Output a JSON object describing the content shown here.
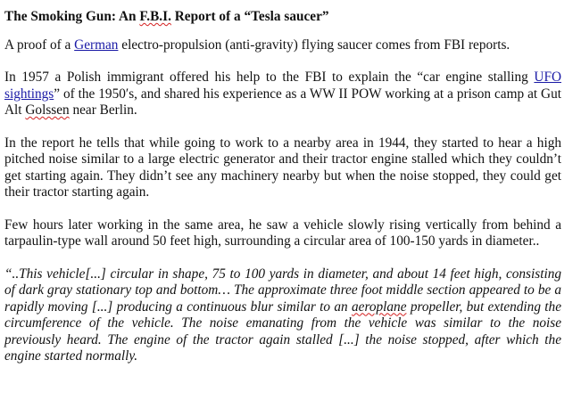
{
  "article": {
    "title": {
      "prefix": "The Smoking Gun: An ",
      "fbi": "F.B.I.",
      "suffix": " Report of a “Tesla saucer”"
    },
    "p1": {
      "before": "A proof of a ",
      "link_german": "German",
      "after": " electro-propulsion (anti-gravity) flying saucer comes from FBI reports."
    },
    "p2": {
      "before": "In 1957 a Polish immigrant offered his help to the FBI to explain the “car engine stalling ",
      "link_ufo": "UFO sightings",
      "middle": "” of the 1950′s, and shared his experience as a WW II POW working at a prison camp at Gut Alt ",
      "golssen": "Golssen",
      "after": " near Berlin."
    },
    "p3": "In the report he tells that while going to work to a nearby area in 1944, they started to hear a high pitched noise similar to a large electric generator and their tractor engine stalled which they couldn’t get starting again. They didn’t see any machinery nearby but when the noise stopped, they could get their tractor starting again.",
    "p4": "Few hours later working in the same area, he saw a vehicle slowly rising vertically from behind a tarpaulin-type wall around 50 feet high, surrounding a circular area of 100-150 yards in diameter..",
    "p5": {
      "before": "“..This vehicle[...] circular in shape, 75 to 100 yards in diameter, and about 14 feet high, consisting of dark gray stationary top and bottom… The approximate three foot middle section appeared to be a rapidly moving [...] producing a continuous blur similar to an ",
      "aeroplane": "aeroplane",
      "after": " propeller, but extending the circumference of the vehicle. The noise emanating from the vehicle was similar to the noise previously heard. The engine of the tractor again stalled [...] the noise stopped, after which the engine started normally."
    }
  }
}
